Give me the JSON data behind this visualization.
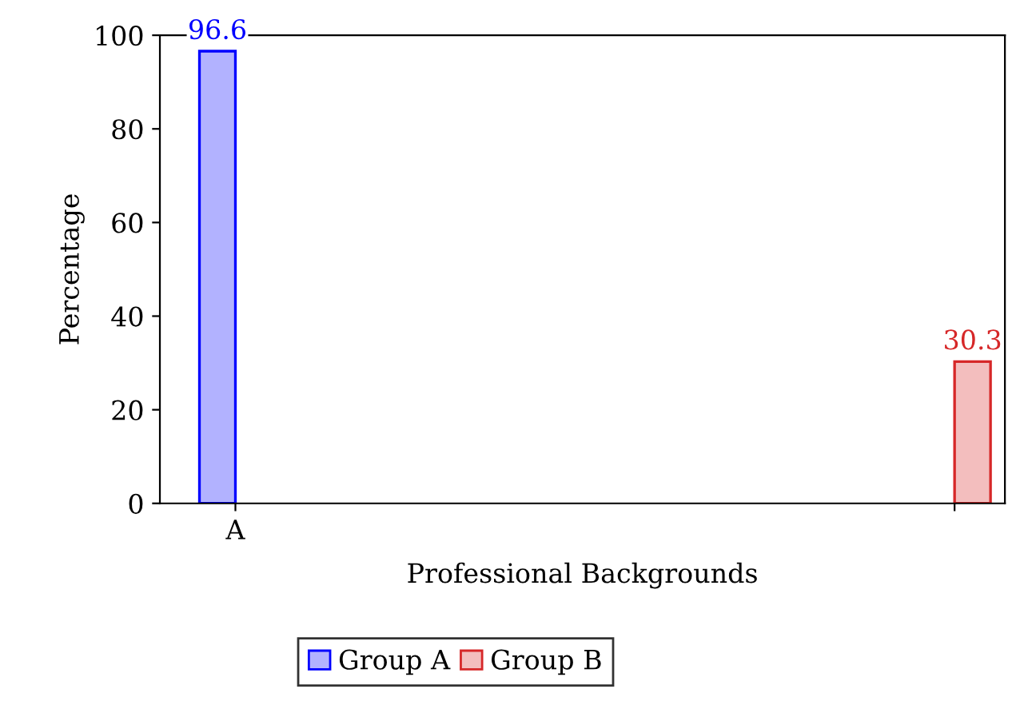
{
  "chart_data": {
    "type": "bar",
    "xlabel": "Professional Backgrounds",
    "ylabel": "Percentage",
    "categories": [
      "A",
      null
    ],
    "series": [
      {
        "name": "Group A",
        "color": "#0000ff",
        "values": [
          96.6,
          null
        ]
      },
      {
        "name": "Group B",
        "color": "#d62728",
        "values": [
          null,
          30.3
        ]
      }
    ],
    "ylim": [
      0,
      100
    ],
    "yticks": [
      0,
      20,
      40,
      60,
      80,
      100
    ],
    "grid": false,
    "data_labels": true,
    "legend": "bottom"
  }
}
